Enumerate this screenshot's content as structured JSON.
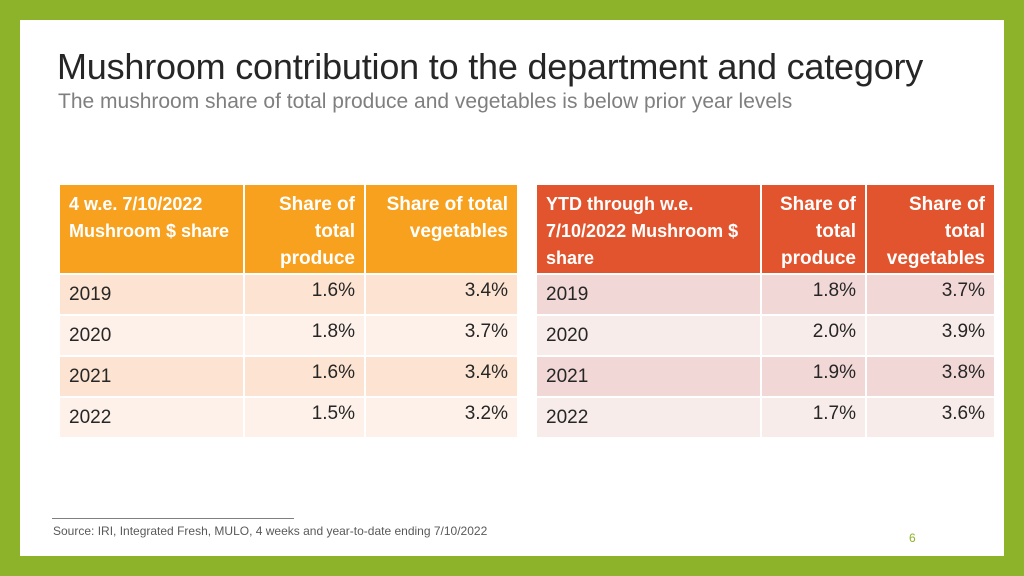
{
  "title": "Mushroom contribution to the department and category",
  "subtitle": "The mushroom share of total produce and vegetables is below prior year levels",
  "tables": [
    {
      "headers": {
        "label": "4 w.e. 7/10/2022 Mushroom $ share",
        "produce": "Share of total produce",
        "vegetables": "Share of total vegetables"
      },
      "rows": [
        {
          "year": "2019",
          "produce": "1.6%",
          "vegetables": "3.4%"
        },
        {
          "year": "2020",
          "produce": "1.8%",
          "vegetables": "3.7%"
        },
        {
          "year": "2021",
          "produce": "1.6%",
          "vegetables": "3.4%"
        },
        {
          "year": "2022",
          "produce": "1.5%",
          "vegetables": "3.2%"
        }
      ]
    },
    {
      "headers": {
        "label": "YTD through w.e. 7/10/2022 Mushroom $ share",
        "produce": "Share of total produce",
        "vegetables": "Share of total vegetables"
      },
      "rows": [
        {
          "year": "2019",
          "produce": "1.8%",
          "vegetables": "3.7%"
        },
        {
          "year": "2020",
          "produce": "2.0%",
          "vegetables": "3.9%"
        },
        {
          "year": "2021",
          "produce": "1.9%",
          "vegetables": "3.8%"
        },
        {
          "year": "2022",
          "produce": "1.7%",
          "vegetables": "3.6%"
        }
      ]
    }
  ],
  "source": "Source: IRI, Integrated Fresh, MULO, 4 weeks and year-to-date ending 7/10/2022",
  "page_number": "6",
  "colors": {
    "frame": "#8db32b",
    "table1_header": "#f8a11e",
    "table2_header": "#e2542d"
  }
}
